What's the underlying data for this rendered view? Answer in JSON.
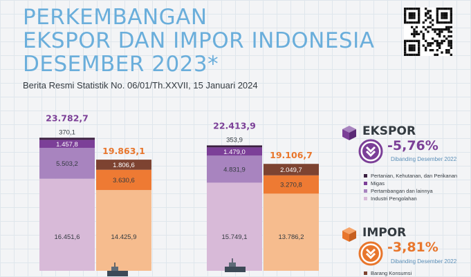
{
  "title_lines": [
    "PERKEMBANGAN",
    "EKSPOR DAN IMPOR INDONESIA",
    "DESEMBER 2023*"
  ],
  "subtitle": "Berita Resmi Statistik No. 06/01/Th.XXVII, 15 Januari 2024",
  "qr_icon": "qr-code-icon",
  "colors": {
    "title": "#6aaedb",
    "total_export": "#7b3f97",
    "total_import": "#e8762c",
    "pertanian": "#3b2040",
    "migas_export": "#7c3f98",
    "pertambangan": "#a884bf",
    "industri": "#d8bad8",
    "import_dark": "#7d4331",
    "import_mid": "#ee7a33",
    "import_light": "#f6bc8e"
  },
  "chart_data": {
    "type": "bar",
    "stacked": true,
    "unit": "",
    "groups": [
      {
        "export": {
          "total": "23.782,7",
          "segments": [
            16451.6,
            5503.2,
            1457.8,
            370.1
          ],
          "labels": [
            "16.451,6",
            "5.503,2",
            "1.457,8",
            "370,1"
          ]
        },
        "import": {
          "total": "19.863,1",
          "segments": [
            14425.9,
            3630.6,
            1806.6
          ],
          "labels": [
            "14.425,9",
            "3.630,6",
            "1.806,6"
          ]
        }
      },
      {
        "export": {
          "total": "22.413,9",
          "segments": [
            15749.1,
            4831.9,
            1479.0,
            353.9
          ],
          "labels": [
            "15.749,1",
            "4.831,9",
            "1.479,0",
            "353,9"
          ]
        },
        "import": {
          "total": "19.106,7",
          "segments": [
            13786.2,
            3270.8,
            2049.7
          ],
          "labels": [
            "13.786,2",
            "3.270,8",
            "2.049,7"
          ]
        }
      }
    ],
    "export_segment_order": [
      "Industri Pengolahan",
      "Pertambangan dan lainnya",
      "Migas",
      "Pertanian, Kehutanan, dan Perikanan"
    ]
  },
  "ekspor": {
    "label": "EKSPOR",
    "pct": "-5,76%",
    "compare": "Dibanding Desember 2022",
    "icon": "box-icon",
    "arrow_icon": "double-chevron-down-icon",
    "legend": [
      "Pertanian, Kehutanan, dan Perikanan",
      "Migas",
      "Pertambangan dan lainnya",
      "Industri Pengolahan"
    ]
  },
  "impor": {
    "label": "IMPOR",
    "pct": "-3,81%",
    "compare": "Dibanding Desember 2022",
    "icon": "box-icon",
    "arrow_icon": "double-chevron-down-icon",
    "legend": [
      "Barang Konsumsi"
    ]
  }
}
